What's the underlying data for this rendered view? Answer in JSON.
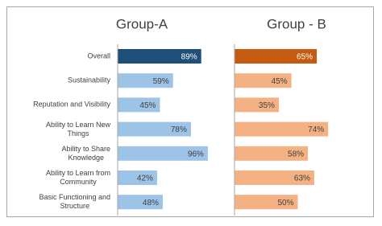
{
  "chart_data": [
    {
      "type": "bar",
      "title": "Group-A",
      "categories": [
        "Overall",
        "Sustainability",
        "Reputation and Visibility",
        "Ability to Learn New\nThings",
        "Ability to Share\nKnowledge",
        "Ability to Learn from\nCommunity",
        "Basic Functioning and\nStructure"
      ],
      "values": [
        89,
        59,
        45,
        78,
        96,
        42,
        48
      ],
      "value_labels": [
        "89%",
        "59%",
        "45%",
        "78%",
        "96%",
        "42%",
        "48%"
      ],
      "colors": [
        "#1f4e79",
        "#9dc3e6",
        "#9dc3e6",
        "#9dc3e6",
        "#9dc3e6",
        "#9dc3e6",
        "#9dc3e6"
      ],
      "xlim": [
        0,
        100
      ]
    },
    {
      "type": "bar",
      "title": "Group - B",
      "values": [
        65,
        45,
        35,
        74,
        58,
        63,
        50
      ],
      "value_labels": [
        "65%",
        "45%",
        "35%",
        "74%",
        "58%",
        "63%",
        "50%"
      ],
      "colors": [
        "#c55a11",
        "#f4b183",
        "#f4b183",
        "#f4b183",
        "#f4b183",
        "#f4b183",
        "#f4b183"
      ],
      "xlim": [
        0,
        100
      ]
    }
  ]
}
